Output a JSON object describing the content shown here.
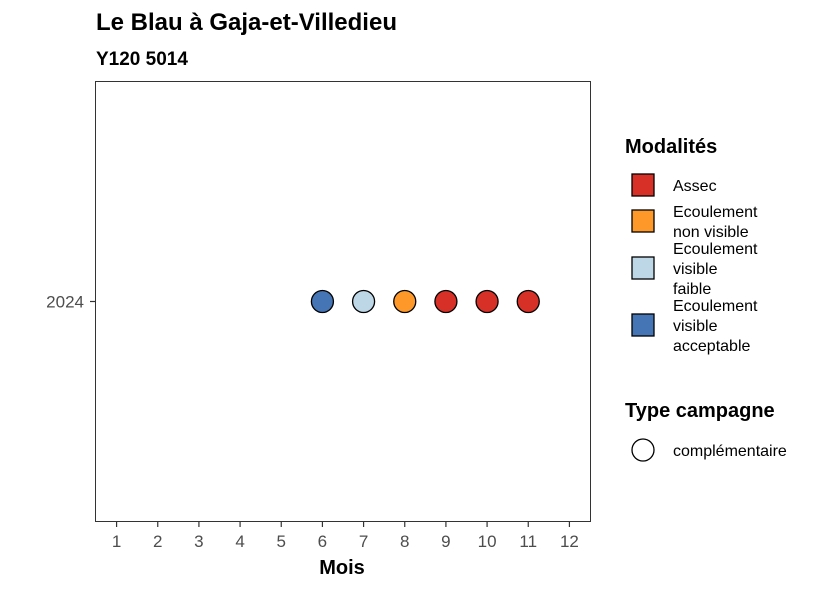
{
  "chart_data": {
    "type": "scatter",
    "title": "Le Blau à Gaja-et-Villedieu",
    "subtitle": "Y120 5014",
    "xlabel": "Mois",
    "ylabel": "",
    "x_ticks": [
      "1",
      "2",
      "3",
      "4",
      "5",
      "6",
      "7",
      "8",
      "9",
      "10",
      "11",
      "12"
    ],
    "y_ticks": [
      "2024"
    ],
    "xlim": [
      0.5,
      12.5
    ],
    "grid": false,
    "points": [
      {
        "x": 6,
        "y": "2024",
        "modalite": "Ecoulement visible acceptable",
        "campagne": "complémentaire"
      },
      {
        "x": 7,
        "y": "2024",
        "modalite": "Ecoulement visible faible",
        "campagne": "complémentaire"
      },
      {
        "x": 8,
        "y": "2024",
        "modalite": "Ecoulement non visible",
        "campagne": "complémentaire"
      },
      {
        "x": 9,
        "y": "2024",
        "modalite": "Assec",
        "campagne": "complémentaire"
      },
      {
        "x": 10,
        "y": "2024",
        "modalite": "Assec",
        "campagne": "complémentaire"
      },
      {
        "x": 11,
        "y": "2024",
        "modalite": "Assec",
        "campagne": "complémentaire"
      }
    ],
    "legend": {
      "placement": "right",
      "modalites": {
        "title": "Modalités",
        "items": [
          {
            "key": "Assec",
            "lines": [
              "Assec"
            ],
            "color": "#d73027"
          },
          {
            "key": "Ecoulement non visible",
            "lines": [
              "Ecoulement",
              "non visible"
            ],
            "color": "#fe9929"
          },
          {
            "key": "Ecoulement visible faible",
            "lines": [
              "Ecoulement",
              "visible",
              "faible"
            ],
            "color": "#bdd7e7"
          },
          {
            "key": "Ecoulement visible acceptable",
            "lines": [
              "Ecoulement",
              "visible",
              "acceptable"
            ],
            "color": "#4575b4"
          }
        ]
      },
      "campagne": {
        "title": "Type campagne",
        "items": [
          {
            "key": "complémentaire",
            "lines": [
              "complémentaire"
            ]
          }
        ]
      }
    }
  }
}
